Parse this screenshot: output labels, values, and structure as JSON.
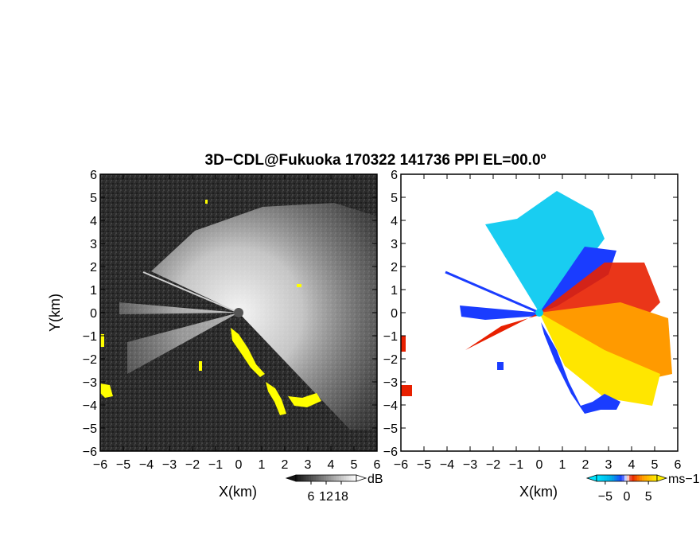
{
  "title": "3D−CDL@Fukuoka 170322 141736 PPI EL=00.0º",
  "chart_data": [
    {
      "type": "heatmap",
      "name": "reflectivity-ppi",
      "xlabel": "X(km)",
      "ylabel": "Y(km)",
      "xlim": [
        -6,
        6
      ],
      "ylim": [
        -6,
        6
      ],
      "x_ticks": [
        "−6",
        "−5",
        "−4",
        "−3",
        "−2",
        "−1",
        "0",
        "1",
        "2",
        "3",
        "4",
        "5",
        "6"
      ],
      "y_ticks": [
        "−6",
        "−5",
        "−4",
        "−3",
        "−2",
        "−1",
        "0",
        "1",
        "2",
        "3",
        "4",
        "5",
        "6"
      ],
      "colorbar": {
        "unit": "dB",
        "ticks": [
          "6",
          "12",
          "18"
        ],
        "tick_values": [
          6,
          12,
          18
        ],
        "range": [
          0,
          24
        ]
      },
      "colors": {
        "background": "#2b2b2b",
        "echo": "#e6e6e6",
        "flag": "#ffff00"
      }
    },
    {
      "type": "heatmap",
      "name": "doppler-velocity-ppi",
      "xlabel": "X(km)",
      "xlim": [
        -6,
        6
      ],
      "ylim": [
        -6,
        6
      ],
      "x_ticks": [
        "−6",
        "−5",
        "−4",
        "−3",
        "−2",
        "−1",
        "0",
        "1",
        "2",
        "3",
        "4",
        "5",
        "6"
      ],
      "colorbar": {
        "unit": "ms−1",
        "ticks": [
          "−5",
          "0",
          "5"
        ],
        "tick_values": [
          -5,
          0,
          5
        ],
        "range": [
          -7,
          7
        ]
      },
      "colors": {
        "towards": "#00c8f0",
        "strong_towards": "#1a3cff",
        "strong_away": "#e82000",
        "away": "#ff9a00",
        "weak_away": "#ffe600"
      }
    }
  ]
}
